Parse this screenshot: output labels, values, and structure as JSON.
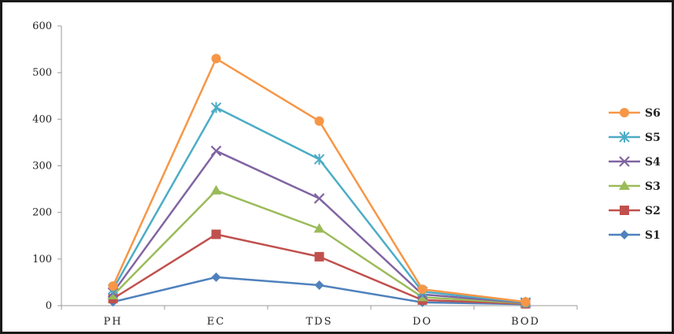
{
  "chart_data": {
    "type": "line",
    "categories": [
      "PH",
      "EC",
      "TDS",
      "DO",
      "BOD"
    ],
    "ylim": [
      0,
      600
    ],
    "yticks": [
      0,
      100,
      200,
      300,
      400,
      500,
      600
    ],
    "grid": false,
    "legend_position": "right",
    "series": [
      {
        "name": "S6",
        "color": "#F79646",
        "marker": "circle",
        "values": [
          42,
          530,
          396,
          35,
          8
        ]
      },
      {
        "name": "S5",
        "color": "#4BACC6",
        "marker": "star",
        "values": [
          35,
          425,
          314,
          30,
          7
        ]
      },
      {
        "name": "S4",
        "color": "#8064A2",
        "marker": "x",
        "values": [
          28,
          332,
          230,
          24,
          6
        ]
      },
      {
        "name": "S3",
        "color": "#9BBB59",
        "marker": "triangle",
        "values": [
          22,
          247,
          165,
          18,
          5
        ]
      },
      {
        "name": "S2",
        "color": "#C0504D",
        "marker": "square",
        "values": [
          15,
          153,
          105,
          12,
          4
        ]
      },
      {
        "name": "S1",
        "color": "#4F81BD",
        "marker": "diamond",
        "values": [
          8,
          61,
          44,
          7,
          3
        ]
      }
    ]
  }
}
